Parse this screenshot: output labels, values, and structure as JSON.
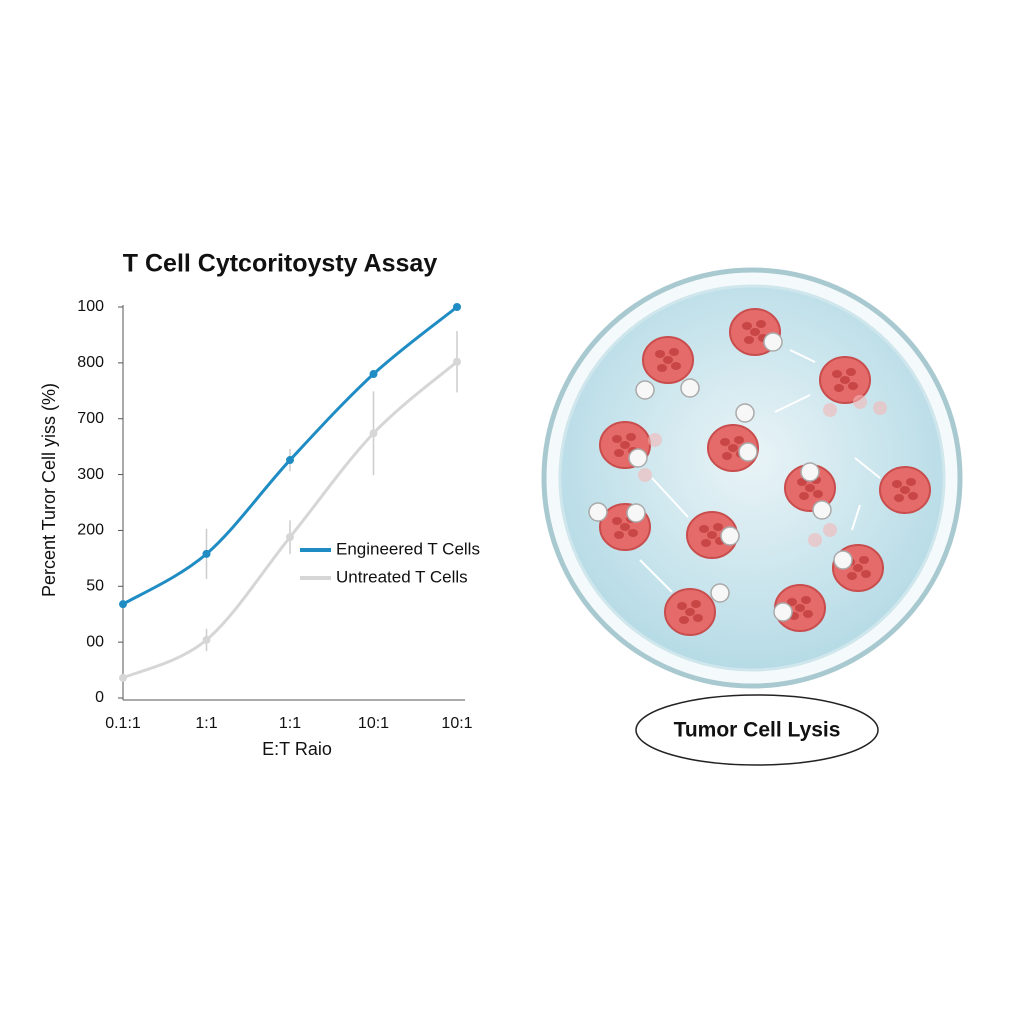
{
  "chart_data": {
    "type": "line",
    "title": "T Cell Cytcoritoysty Assay",
    "x_label": "E:T Raio",
    "y_label": "Percent Turor Cell yiss (%)",
    "categories": [
      "0.1:1",
      "1:1",
      "1:1",
      "10:1",
      "10:1"
    ],
    "series": [
      {
        "name": "Engineered T Cells",
        "color": "#1f8cc4",
        "values": [
          1.68,
          2.58,
          4.26,
          5.8,
          7.0
        ],
        "errors": [
          null,
          0.45,
          0.2,
          null,
          null
        ]
      },
      {
        "name": "Untreated T Cells",
        "color": "#d6d6d6",
        "values": [
          0.36,
          1.04,
          2.88,
          4.74,
          6.02
        ],
        "errors": [
          null,
          0.2,
          0.3,
          0.75,
          0.55
        ]
      }
    ],
    "ylim": [
      0,
      7
    ],
    "yticks": [
      0,
      {
        "value": 1,
        "label": "00"
      },
      {
        "value": 2,
        "label": "50"
      },
      {
        "value": 3,
        "label": "200"
      },
      {
        "value": 4,
        "label": "300"
      },
      {
        "value": 5,
        "label": "700"
      },
      {
        "value": 6,
        "label": "800"
      },
      {
        "value": 7,
        "label": "100"
      }
    ],
    "legend": "right",
    "grid": false
  },
  "illustration": {
    "label": "Tumor Cell Lysis"
  }
}
